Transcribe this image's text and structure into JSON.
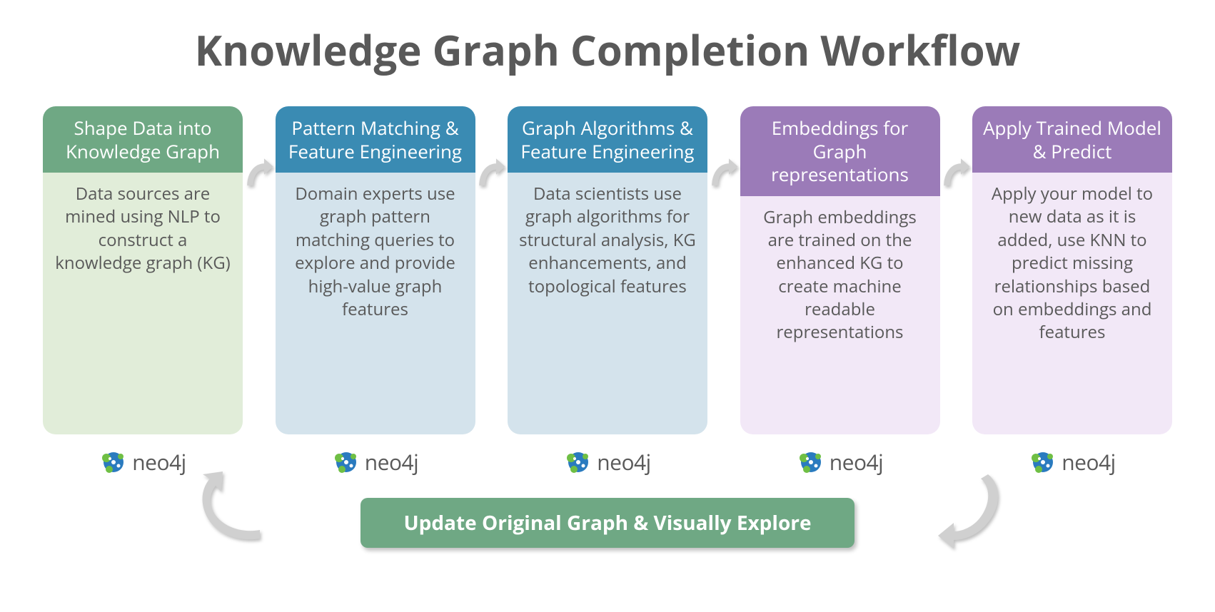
{
  "title": "Knowledge Graph Completion Workflow",
  "title_color": "#595959",
  "title_fontsize": 58,
  "background_color": "#ffffff",
  "arrow_color": "#d0d0d0",
  "arrow_shadow": "rgba(0,0,0,0.25)",
  "logo_label": "neo4j",
  "logo_text_color": "#5a5a5a",
  "logo_blue": "#2a7bbf",
  "logo_green": "#6fbf44",
  "cards": [
    {
      "header": "Shape Data into Knowledge Graph",
      "body": "Data sources are mined using NLP to construct a knowledge graph (KG)",
      "header_bg": "#6fa884",
      "body_bg": "#e1edd9",
      "body_color": "#595959"
    },
    {
      "header": "Pattern Matching & Feature Engineering",
      "body": "Domain experts use graph pattern matching queries to explore and provide high-value graph features",
      "header_bg": "#3a8bb3",
      "body_bg": "#d4e3ec",
      "body_color": "#595959"
    },
    {
      "header": "Graph Algorithms & Feature Engineering",
      "body": "Data scientists use graph algorithms for structural analysis, KG enhancements, and topological features",
      "header_bg": "#3a8bb3",
      "body_bg": "#d4e3ec",
      "body_color": "#595959"
    },
    {
      "header": "Embeddings for Graph representations",
      "body": "Graph embeddings are trained on the enhanced KG to create machine readable representations",
      "header_bg": "#9b7bb8",
      "body_bg": "#f2e8f7",
      "body_color": "#595959"
    },
    {
      "header": "Apply Trained Model & Predict",
      "body": "Apply your model to new data as it is added, use KNN to predict missing relationships based on embeddings and features",
      "header_bg": "#9b7bb8",
      "body_bg": "#f2e8f7",
      "body_color": "#595959"
    }
  ],
  "footer": {
    "label": "Update Original Graph & Visually Explore",
    "bg": "#6fa884",
    "color": "#ffffff",
    "fontsize": 28
  }
}
